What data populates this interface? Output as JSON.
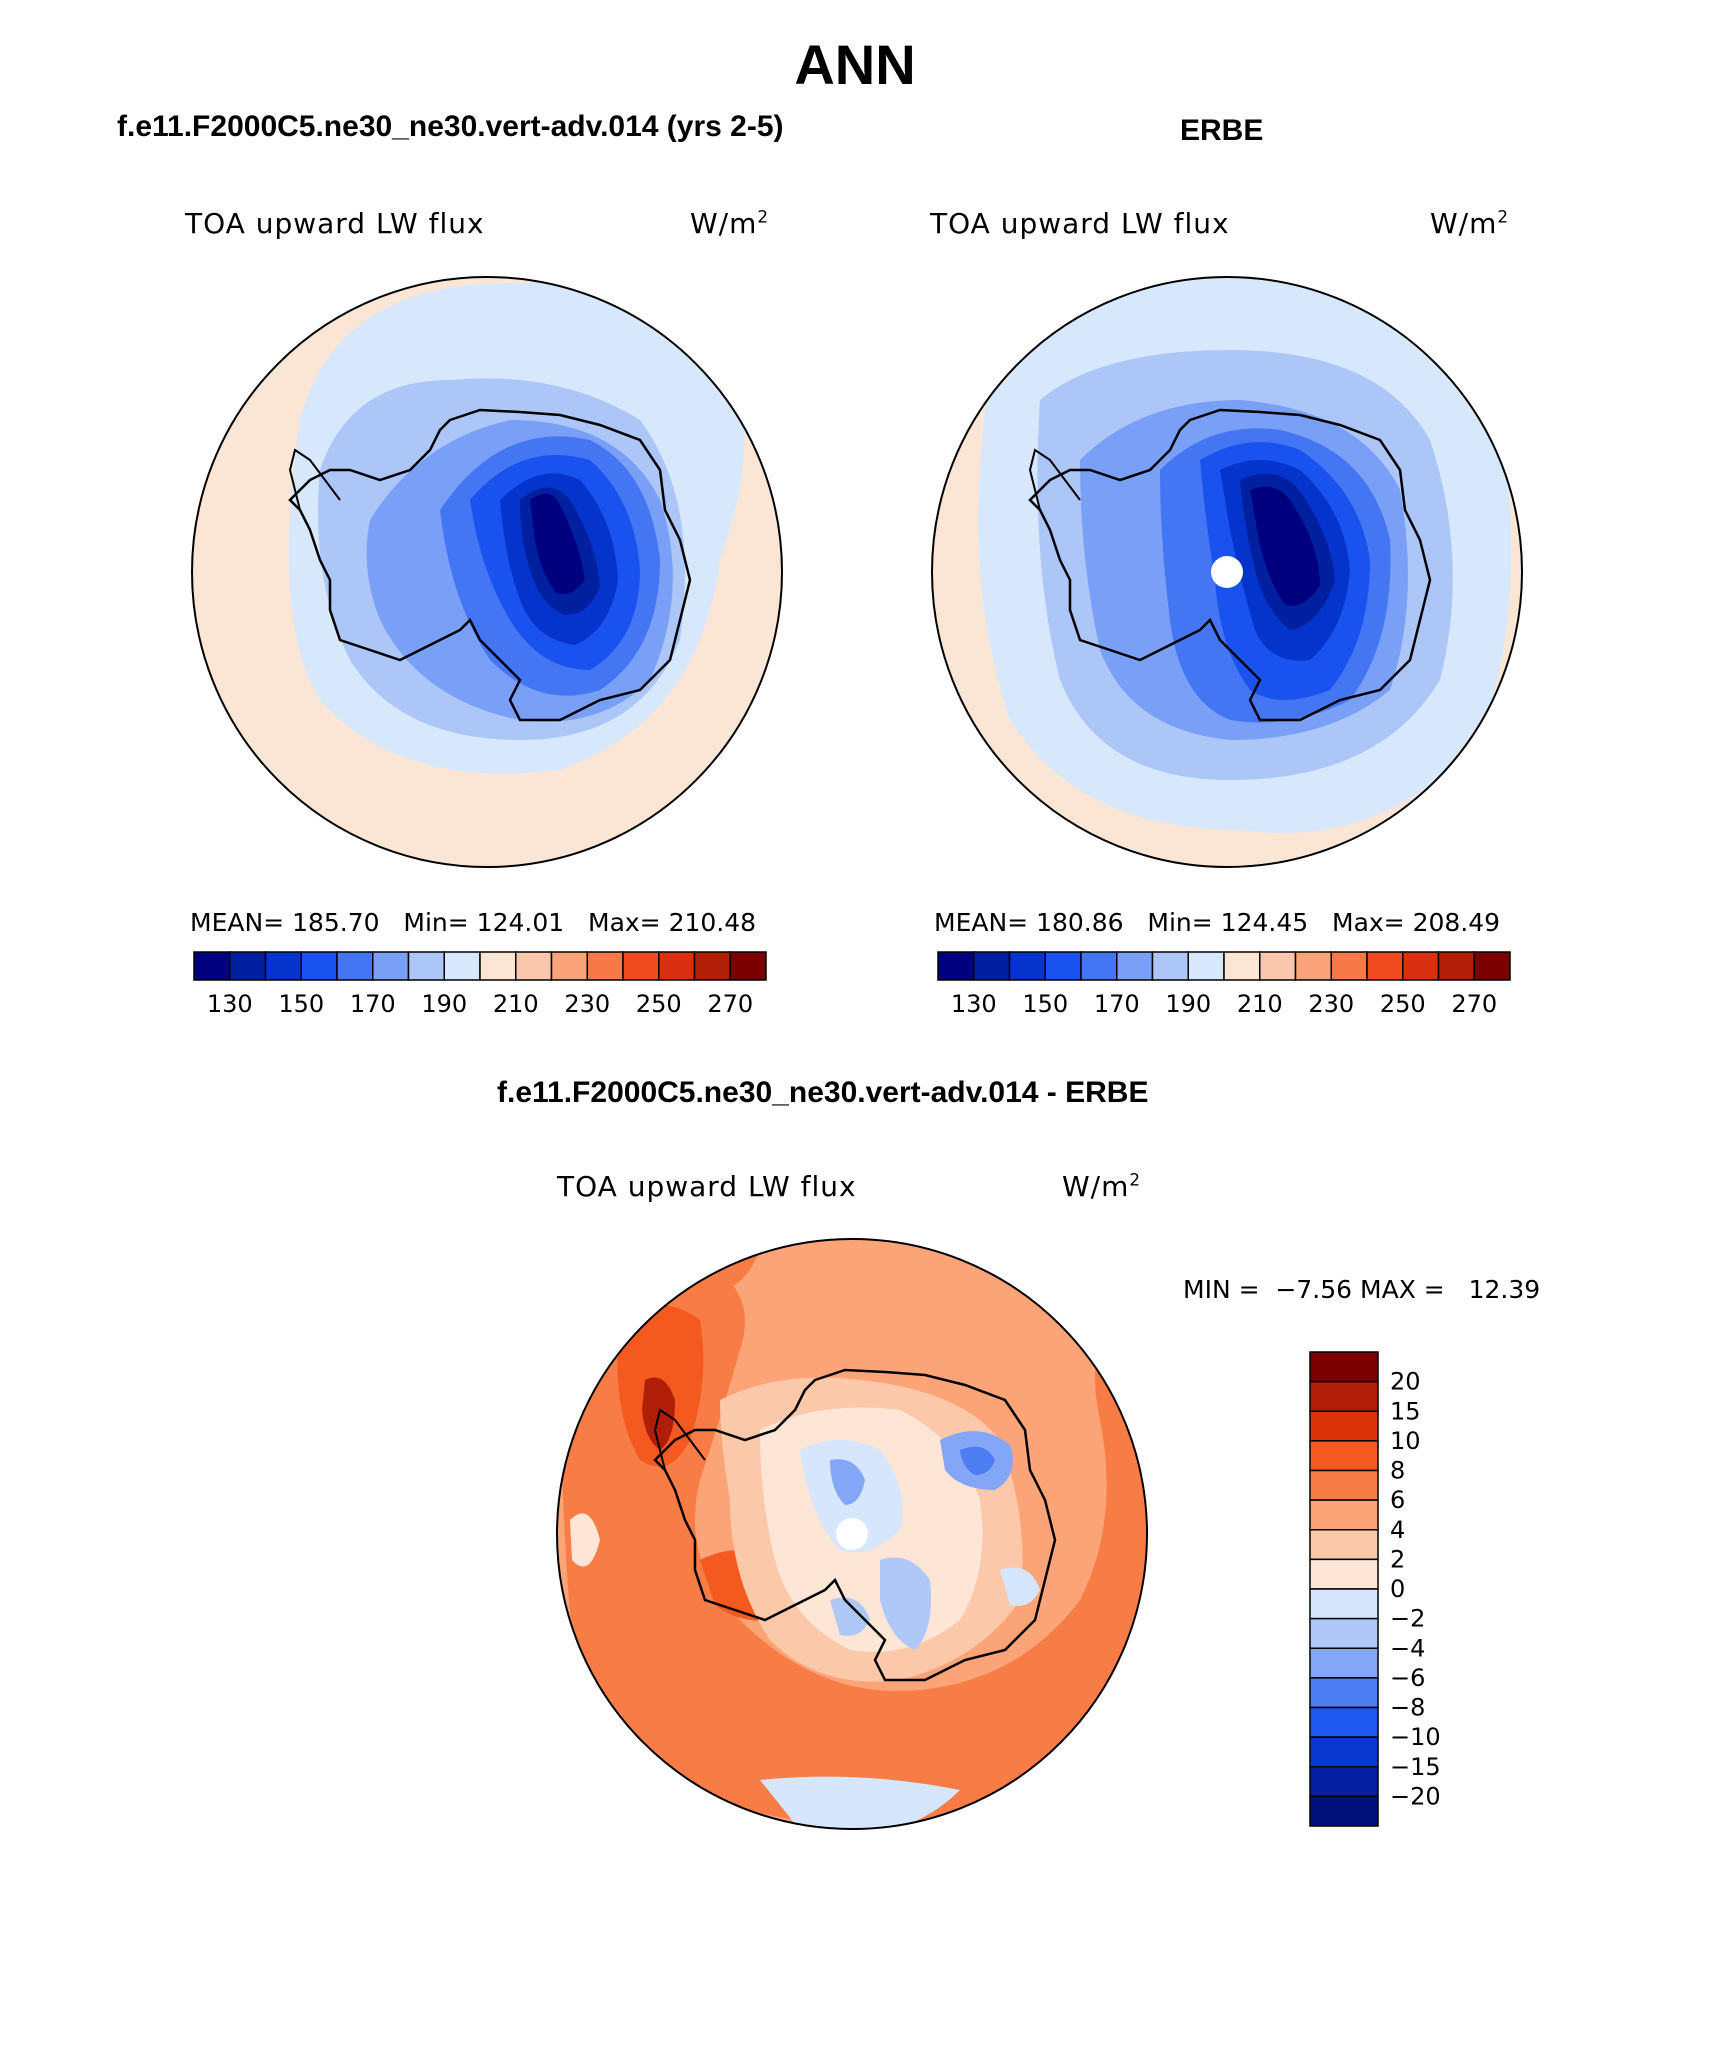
{
  "title": "ANN",
  "panels": [
    {
      "header": "f.e11.F2000C5.ne30_ne30.vert-adv.014 (yrs 2-5)",
      "variable": "TOA upward LW flux",
      "units": "W/m",
      "units_exp": "2",
      "mean_label": "MEAN=",
      "mean": "185.70",
      "min_label": "Min=",
      "min": "124.01",
      "max_label": "Max=",
      "max": "210.48"
    },
    {
      "header": "ERBE",
      "variable": "TOA upward LW flux",
      "units": "W/m",
      "units_exp": "2",
      "mean_label": "MEAN=",
      "mean": "180.86",
      "min_label": "Min=",
      "min": "124.45",
      "max_label": "Max=",
      "max": "208.49"
    }
  ],
  "diff": {
    "header": "f.e11.F2000C5.ne30_ne30.vert-adv.014 - ERBE",
    "variable": "TOA upward LW flux",
    "units": "W/m",
    "units_exp": "2",
    "min_label": "MIN =",
    "min": "−7.56",
    "max_label": "MAX =",
    "max": "12.39"
  },
  "top_colorbar": {
    "colors": [
      "#00007f",
      "#0020a0",
      "#0434cc",
      "#1a52f0",
      "#4476f4",
      "#7a9ff6",
      "#acc6f8",
      "#d8e8fc",
      "#fbe6d6",
      "#fbc7ac",
      "#fba47c",
      "#f8784a",
      "#f04a20",
      "#d83010",
      "#b01e08",
      "#7a0000"
    ],
    "labels": [
      "130",
      "150",
      "170",
      "190",
      "210",
      "230",
      "250",
      "270"
    ]
  },
  "diff_colorbar": {
    "colors": [
      "#7a0000",
      "#b01e08",
      "#dc3208",
      "#f45a20",
      "#f87c46",
      "#fba478",
      "#fcc8aa",
      "#fde6d6",
      "#d6e6fc",
      "#b0c8f8",
      "#84a6f6",
      "#4e7ef4",
      "#1e58f0",
      "#0838d0",
      "#0420a0",
      "#00107a"
    ],
    "labels": [
      "20",
      "15",
      "10",
      "8",
      "6",
      "4",
      "2",
      "0",
      "−2",
      "−4",
      "−6",
      "−8",
      "−10",
      "−15",
      "−20"
    ]
  }
}
